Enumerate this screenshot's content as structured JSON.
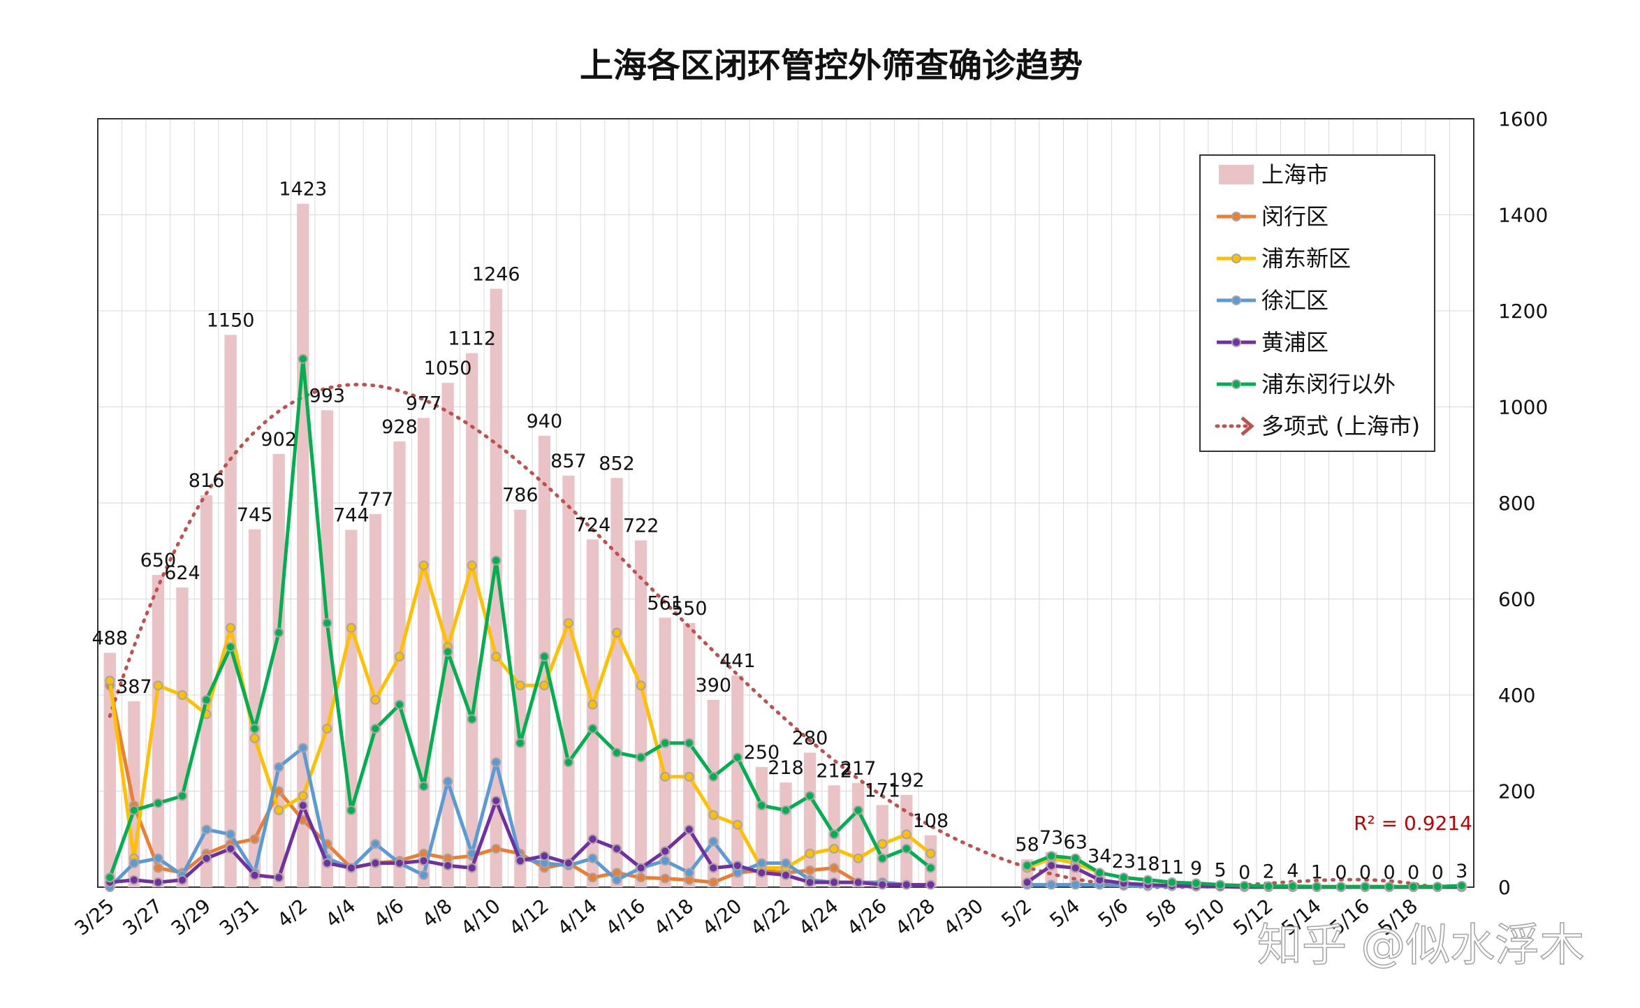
{
  "chart_data": {
    "type": "bar+line",
    "title": "上海各区闭环管控外筛查确诊趋势",
    "x_tick_labels": [
      "3/25",
      "3/27",
      "3/29",
      "3/31",
      "4/2",
      "4/4",
      "4/6",
      "4/8",
      "4/10",
      "4/12",
      "4/14",
      "4/16",
      "4/18",
      "4/20",
      "4/22",
      "4/24",
      "4/26",
      "4/28",
      "4/30",
      "5/2",
      "5/4",
      "5/6",
      "5/8",
      "5/10",
      "5/12",
      "5/14",
      "5/16",
      "5/18"
    ],
    "y_ticks": [
      0,
      200,
      400,
      600,
      800,
      1000,
      1200,
      1400,
      1600
    ],
    "ylim": [
      0,
      1600
    ],
    "grid": true,
    "legend_position": "top-right",
    "r2_label": "R² = 0.9214",
    "bar_series": {
      "name": "上海市",
      "color": "#e9c3c6",
      "values": [
        488,
        387,
        650,
        624,
        816,
        1150,
        745,
        902,
        1423,
        993,
        744,
        777,
        928,
        977,
        1050,
        1112,
        1246,
        786,
        940,
        857,
        724,
        852,
        722,
        561,
        550,
        390,
        441,
        250,
        218,
        280,
        212,
        217,
        171,
        192,
        108,
        null,
        null,
        null,
        58,
        73,
        63,
        34,
        23,
        18,
        11,
        9,
        5,
        0,
        2,
        4,
        1,
        0,
        0,
        0,
        0,
        0,
        3
      ],
      "labels": [
        "488",
        "387",
        "650",
        "624",
        "816",
        "1150",
        "745",
        "902",
        "1423",
        "993",
        "744",
        "777",
        "928",
        "977",
        "1050",
        "1112",
        "1246",
        "786",
        "940",
        "857",
        "724",
        "852",
        "722",
        "561",
        "550",
        "390",
        "441",
        "250",
        "218",
        "280",
        "212",
        "217",
        "171",
        "192",
        "108",
        "",
        "",
        "",
        "58",
        "73",
        "63",
        "34",
        "23",
        "18",
        "11",
        "9",
        "5",
        "0",
        "2",
        "4",
        "1",
        "0",
        "0",
        "0",
        "0",
        "0",
        "3"
      ]
    },
    "series": [
      {
        "name": "闵行区",
        "color": "#ed7d31",
        "values": [
          420,
          170,
          40,
          30,
          70,
          90,
          100,
          200,
          140,
          90,
          40,
          50,
          55,
          70,
          60,
          65,
          80,
          70,
          40,
          50,
          20,
          30,
          20,
          18,
          15,
          10,
          30,
          35,
          30,
          35,
          40,
          10,
          10,
          5,
          5,
          null,
          null,
          null,
          5,
          5,
          5,
          5,
          4,
          3,
          3,
          2,
          2,
          1,
          1,
          1,
          0,
          0,
          0,
          0,
          0,
          0,
          0
        ]
      },
      {
        "name": "浦东新区",
        "color": "#ffc000",
        "values": [
          430,
          60,
          420,
          400,
          360,
          540,
          310,
          160,
          190,
          330,
          540,
          390,
          480,
          670,
          500,
          670,
          480,
          420,
          420,
          550,
          380,
          530,
          420,
          230,
          230,
          150,
          130,
          40,
          40,
          70,
          80,
          60,
          90,
          110,
          70,
          null,
          null,
          null,
          40,
          60,
          50,
          30,
          20,
          15,
          10,
          8,
          5,
          3,
          2,
          2,
          1,
          1,
          1,
          1,
          1,
          1,
          1
        ]
      },
      {
        "name": "徐汇区",
        "color": "#5b9bd5",
        "values": [
          0,
          50,
          60,
          25,
          120,
          110,
          30,
          250,
          290,
          60,
          40,
          90,
          50,
          25,
          220,
          70,
          260,
          60,
          50,
          45,
          60,
          15,
          40,
          55,
          30,
          95,
          30,
          50,
          50,
          15,
          10,
          10,
          10,
          5,
          5,
          null,
          null,
          null,
          5,
          5,
          5,
          5,
          3,
          2,
          2,
          1,
          1,
          0,
          0,
          0,
          0,
          0,
          0,
          0,
          0,
          0,
          0
        ]
      },
      {
        "name": "黄浦区",
        "color": "#7030a0",
        "values": [
          10,
          15,
          10,
          15,
          60,
          80,
          25,
          20,
          170,
          50,
          40,
          50,
          50,
          55,
          45,
          40,
          180,
          55,
          65,
          50,
          100,
          80,
          40,
          75,
          120,
          40,
          45,
          30,
          25,
          10,
          10,
          10,
          5,
          5,
          5,
          null,
          null,
          null,
          10,
          45,
          40,
          15,
          8,
          5,
          3,
          2,
          1,
          0,
          0,
          0,
          0,
          0,
          0,
          0,
          0,
          0,
          0
        ]
      },
      {
        "name": "浦东闵行以外",
        "color": "#00b050",
        "values": [
          20,
          160,
          175,
          190,
          390,
          500,
          330,
          530,
          1100,
          550,
          160,
          330,
          380,
          210,
          490,
          350,
          680,
          300,
          480,
          260,
          330,
          280,
          270,
          300,
          300,
          230,
          270,
          170,
          160,
          190,
          110,
          160,
          60,
          80,
          40,
          null,
          null,
          null,
          45,
          65,
          60,
          30,
          20,
          15,
          10,
          8,
          5,
          3,
          2,
          2,
          1,
          1,
          1,
          1,
          1,
          1,
          3
        ]
      }
    ],
    "trend_series": {
      "name": "多项式 (上海市)",
      "color": "#c0504d",
      "type": "polynomial"
    }
  }
}
